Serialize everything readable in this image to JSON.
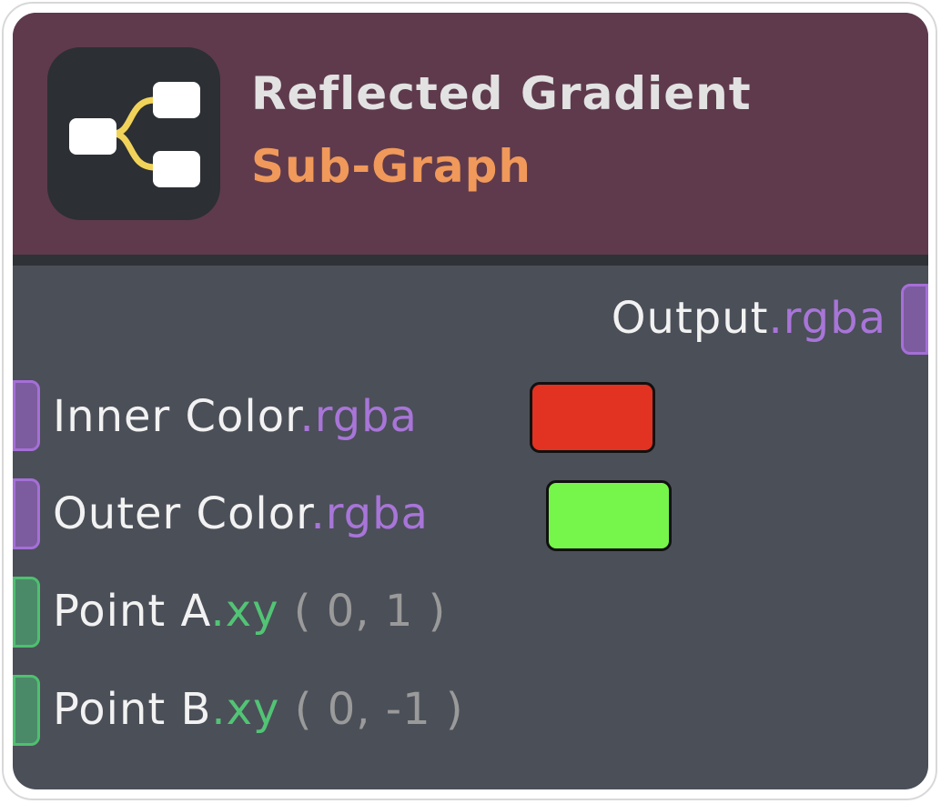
{
  "node": {
    "title": "Reflected Gradient",
    "subtitle": "Sub-Graph",
    "icon": "sub-graph-icon",
    "colors": {
      "header": "#5e3a4c",
      "body": "#4b4f58",
      "subtitle": "#f0995a",
      "rgba_type": "#a875d8",
      "xy_type": "#52c475"
    }
  },
  "outputs": [
    {
      "name": "Output",
      "type": ".rgba"
    }
  ],
  "inputs": [
    {
      "name": "Inner Color",
      "type": ".rgba",
      "color": "#e23222"
    },
    {
      "name": "Outer Color",
      "type": ".rgba",
      "color": "#76f54a"
    },
    {
      "name": "Point A",
      "type": ".xy",
      "value": "( 0, 1 )"
    },
    {
      "name": "Point B",
      "type": ".xy",
      "value": "( 0, -1 )"
    }
  ]
}
